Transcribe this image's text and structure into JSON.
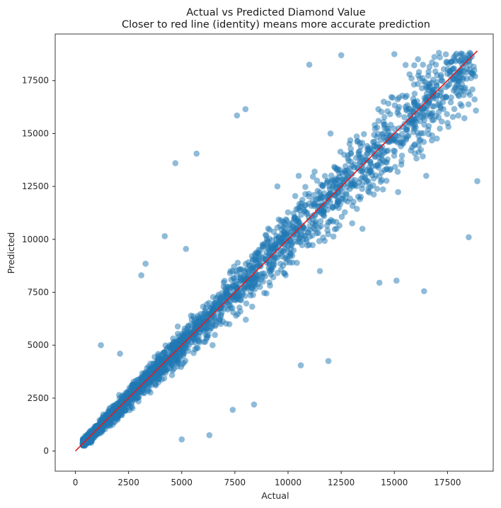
{
  "chart_data": {
    "type": "scatter",
    "title": "Actual vs Predicted Diamond Value",
    "subtitle": "Closer to red line (identity) means more accurate prediction",
    "xlabel": "Actual",
    "ylabel": "Predicted",
    "xlim": [
      -950,
      19650
    ],
    "ylim": [
      -950,
      19700
    ],
    "xticks": [
      0,
      2500,
      5000,
      7500,
      10000,
      12500,
      15000,
      17500
    ],
    "yticks": [
      0,
      2500,
      5000,
      7500,
      10000,
      12500,
      15000,
      17500
    ],
    "xtick_labels": [
      "0",
      "2500",
      "5000",
      "7500",
      "10000",
      "12500",
      "15000",
      "17500"
    ],
    "ytick_labels": [
      "0",
      "2500",
      "5000",
      "7500",
      "10000",
      "12500",
      "15000",
      "17500"
    ],
    "grid": false,
    "series": [
      {
        "name": "predictions",
        "color": "#1f77b4",
        "alpha": 0.5,
        "points_sample": [
          [
            4700,
            13600
          ],
          [
            5700,
            14050
          ],
          [
            7600,
            15850
          ],
          [
            8000,
            16150
          ],
          [
            11000,
            18250
          ],
          [
            12500,
            18700
          ],
          [
            15000,
            18750
          ],
          [
            17800,
            18600
          ],
          [
            18900,
            12750
          ],
          [
            18500,
            10100
          ],
          [
            16400,
            7550
          ],
          [
            14300,
            7950
          ],
          [
            15100,
            8050
          ],
          [
            11900,
            4250
          ],
          [
            10600,
            4050
          ],
          [
            8400,
            2200
          ],
          [
            7400,
            1950
          ],
          [
            5000,
            550
          ],
          [
            6300,
            750
          ],
          [
            3100,
            8300
          ],
          [
            3300,
            8850
          ],
          [
            4200,
            10150
          ],
          [
            5200,
            9550
          ],
          [
            1200,
            5000
          ],
          [
            2100,
            4600
          ],
          [
            600,
            400
          ],
          [
            1000,
            900
          ],
          [
            1500,
            1500
          ],
          [
            2000,
            2100
          ],
          [
            2500,
            2450
          ],
          [
            3000,
            3100
          ],
          [
            3500,
            3500
          ],
          [
            4000,
            4100
          ],
          [
            4500,
            4400
          ],
          [
            5000,
            5050
          ],
          [
            5500,
            5400
          ],
          [
            6000,
            6100
          ],
          [
            6500,
            6400
          ],
          [
            7000,
            7100
          ],
          [
            7500,
            7400
          ],
          [
            8000,
            8100
          ],
          [
            9000,
            8900
          ],
          [
            10000,
            10100
          ],
          [
            11000,
            10900
          ],
          [
            12000,
            12200
          ],
          [
            13000,
            12800
          ],
          [
            14000,
            14200
          ],
          [
            15000,
            14700
          ],
          [
            16000,
            16300
          ],
          [
            17000,
            16800
          ],
          [
            18000,
            17900
          ],
          [
            18500,
            18400
          ],
          [
            9500,
            12500
          ],
          [
            11500,
            8500
          ],
          [
            13500,
            10500
          ],
          [
            12000,
            15000
          ],
          [
            16500,
            13000
          ],
          [
            17500,
            15500
          ],
          [
            14500,
            16500
          ],
          [
            10500,
            13000
          ]
        ]
      }
    ],
    "reference_line": {
      "name": "identity",
      "color": "#e31a1c",
      "from": [
        0,
        0
      ],
      "to": [
        18900,
        18900
      ]
    }
  }
}
